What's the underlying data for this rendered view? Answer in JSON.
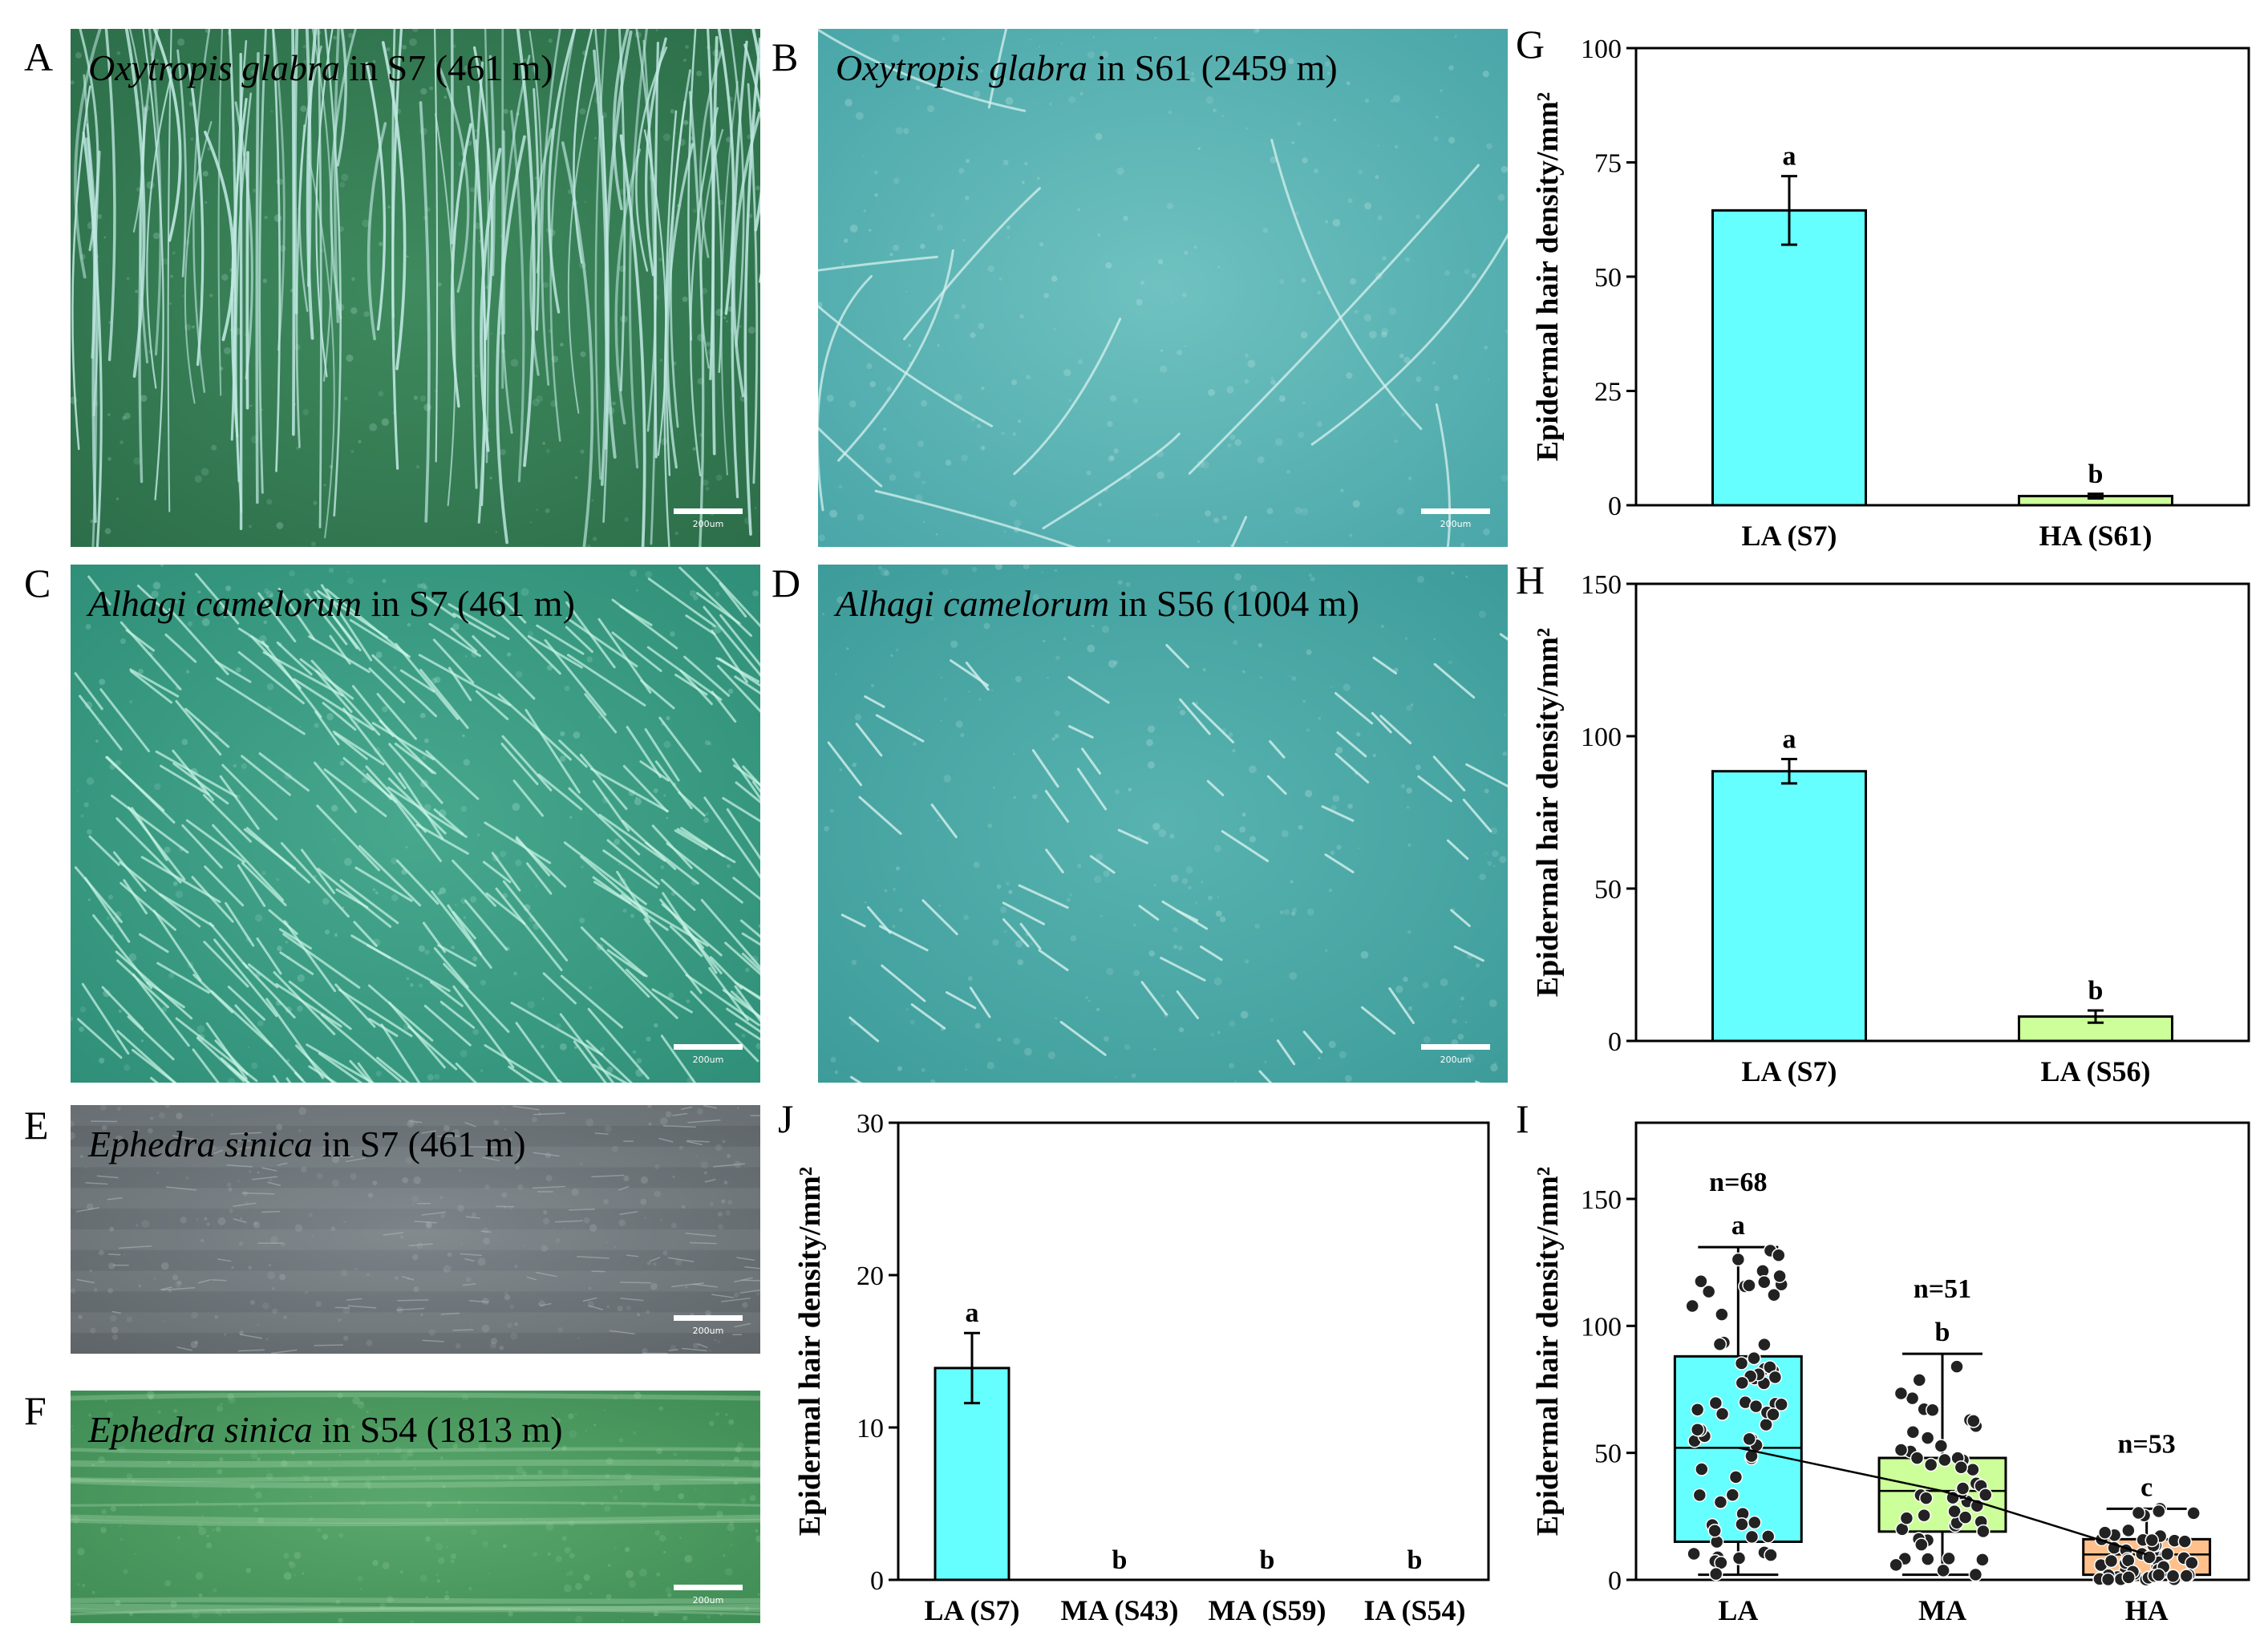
{
  "photos": [
    {
      "letter": "A",
      "species": "Oxytropis glabra",
      "site": " in S7 (461 m)",
      "scale": "200um",
      "colors": {
        "bg": "#2c6e49",
        "base": "#3f8a5e",
        "hair": "#bfe8e2"
      },
      "hair_style": "long-vertical"
    },
    {
      "letter": "B",
      "species": "Oxytropis glabra",
      "site": " in S61 (2459 m)",
      "scale": "200um",
      "colors": {
        "bg": "#4aa6a8",
        "base": "#6fc2c0",
        "hair": "#d6f2ef"
      },
      "hair_style": "sparse-curved"
    },
    {
      "letter": "C",
      "species": "Alhagi camelorum",
      "site": " in S7 (461 m)",
      "scale": "200um",
      "colors": {
        "bg": "#2f8f78",
        "base": "#47a88e",
        "hair": "#c9f5e6"
      },
      "hair_style": "dense-diagonal"
    },
    {
      "letter": "D",
      "species": "Alhagi camelorum",
      "site": " in S56 (1004 m)",
      "scale": "200um",
      "colors": {
        "bg": "#3d9c9a",
        "base": "#58b3b0",
        "hair": "#d4f1ee"
      },
      "hair_style": "sparse-diagonal"
    },
    {
      "letter": "E",
      "species": "Ephedra sinica",
      "site": " in S7 (461 m)",
      "scale": "200um",
      "colors": {
        "bg": "#5e6468",
        "base": "#7c8489",
        "hair": "#b8bec1"
      },
      "hair_style": "grainy"
    },
    {
      "letter": "F",
      "species": "Ephedra sinica",
      "site": " in S54 (1813 m)",
      "scale": "200um",
      "colors": {
        "bg": "#3f8d55",
        "base": "#5aa86c",
        "hair": "#a8d8b0"
      },
      "hair_style": "streaks"
    }
  ],
  "chart_data": [
    {
      "letter": "G",
      "type": "bar",
      "ylabel": "Epidermal hair density/mm²",
      "ylim": [
        0,
        100
      ],
      "yticks": [
        0,
        25,
        50,
        75,
        100
      ],
      "categories": [
        "LA (S7)",
        "HA (S61)"
      ],
      "values": [
        64.5,
        2.0
      ],
      "errors": [
        7.5,
        0.5
      ],
      "sig": [
        "a",
        "b"
      ],
      "colors": [
        "#66ffff",
        "#ccff99"
      ]
    },
    {
      "letter": "H",
      "type": "bar",
      "ylabel": "Epidermal hair density/mm²",
      "ylim": [
        0,
        150
      ],
      "yticks": [
        0,
        50,
        100,
        150
      ],
      "categories": [
        "LA (S7)",
        "LA (S56)"
      ],
      "values": [
        88.5,
        8.0
      ],
      "errors": [
        4.0,
        2.0
      ],
      "sig": [
        "a",
        "b"
      ],
      "colors": [
        "#66ffff",
        "#ccff99"
      ]
    },
    {
      "letter": "J",
      "type": "bar",
      "ylabel": "Epidermal hair density/mm²",
      "ylim": [
        0,
        30
      ],
      "yticks": [
        0,
        10,
        20,
        30
      ],
      "categories": [
        "LA (S7)",
        "MA (S43)",
        "MA (S59)",
        "IA (S54)"
      ],
      "values": [
        13.9,
        0,
        0,
        0
      ],
      "errors": [
        2.3,
        0,
        0,
        0
      ],
      "sig": [
        "a",
        "b",
        "b",
        "b"
      ],
      "colors": [
        "#66ffff",
        "#66ffff",
        "#66ffff",
        "#66ffff"
      ]
    },
    {
      "letter": "I",
      "type": "box",
      "ylabel": "Epidermal hair density/mm²",
      "ylim": [
        0,
        180
      ],
      "yticks": [
        0,
        50,
        100,
        150
      ],
      "categories": [
        "LA",
        "MA",
        "HA"
      ],
      "n_labels": [
        "n=68",
        "n=51",
        "n=53"
      ],
      "sig": [
        "a",
        "b",
        "c"
      ],
      "boxes": [
        {
          "min": 2,
          "q1": 15,
          "median": 52,
          "q3": 88,
          "max": 131,
          "color": "#66ffff",
          "n": 68
        },
        {
          "min": 2,
          "q1": 19,
          "median": 35,
          "q3": 48,
          "max": 89,
          "color": "#ccff99",
          "n": 51
        },
        {
          "min": 0,
          "q1": 2,
          "median": 10,
          "q3": 16,
          "max": 28,
          "color": "#ffc08c",
          "n": 53
        }
      ]
    }
  ]
}
